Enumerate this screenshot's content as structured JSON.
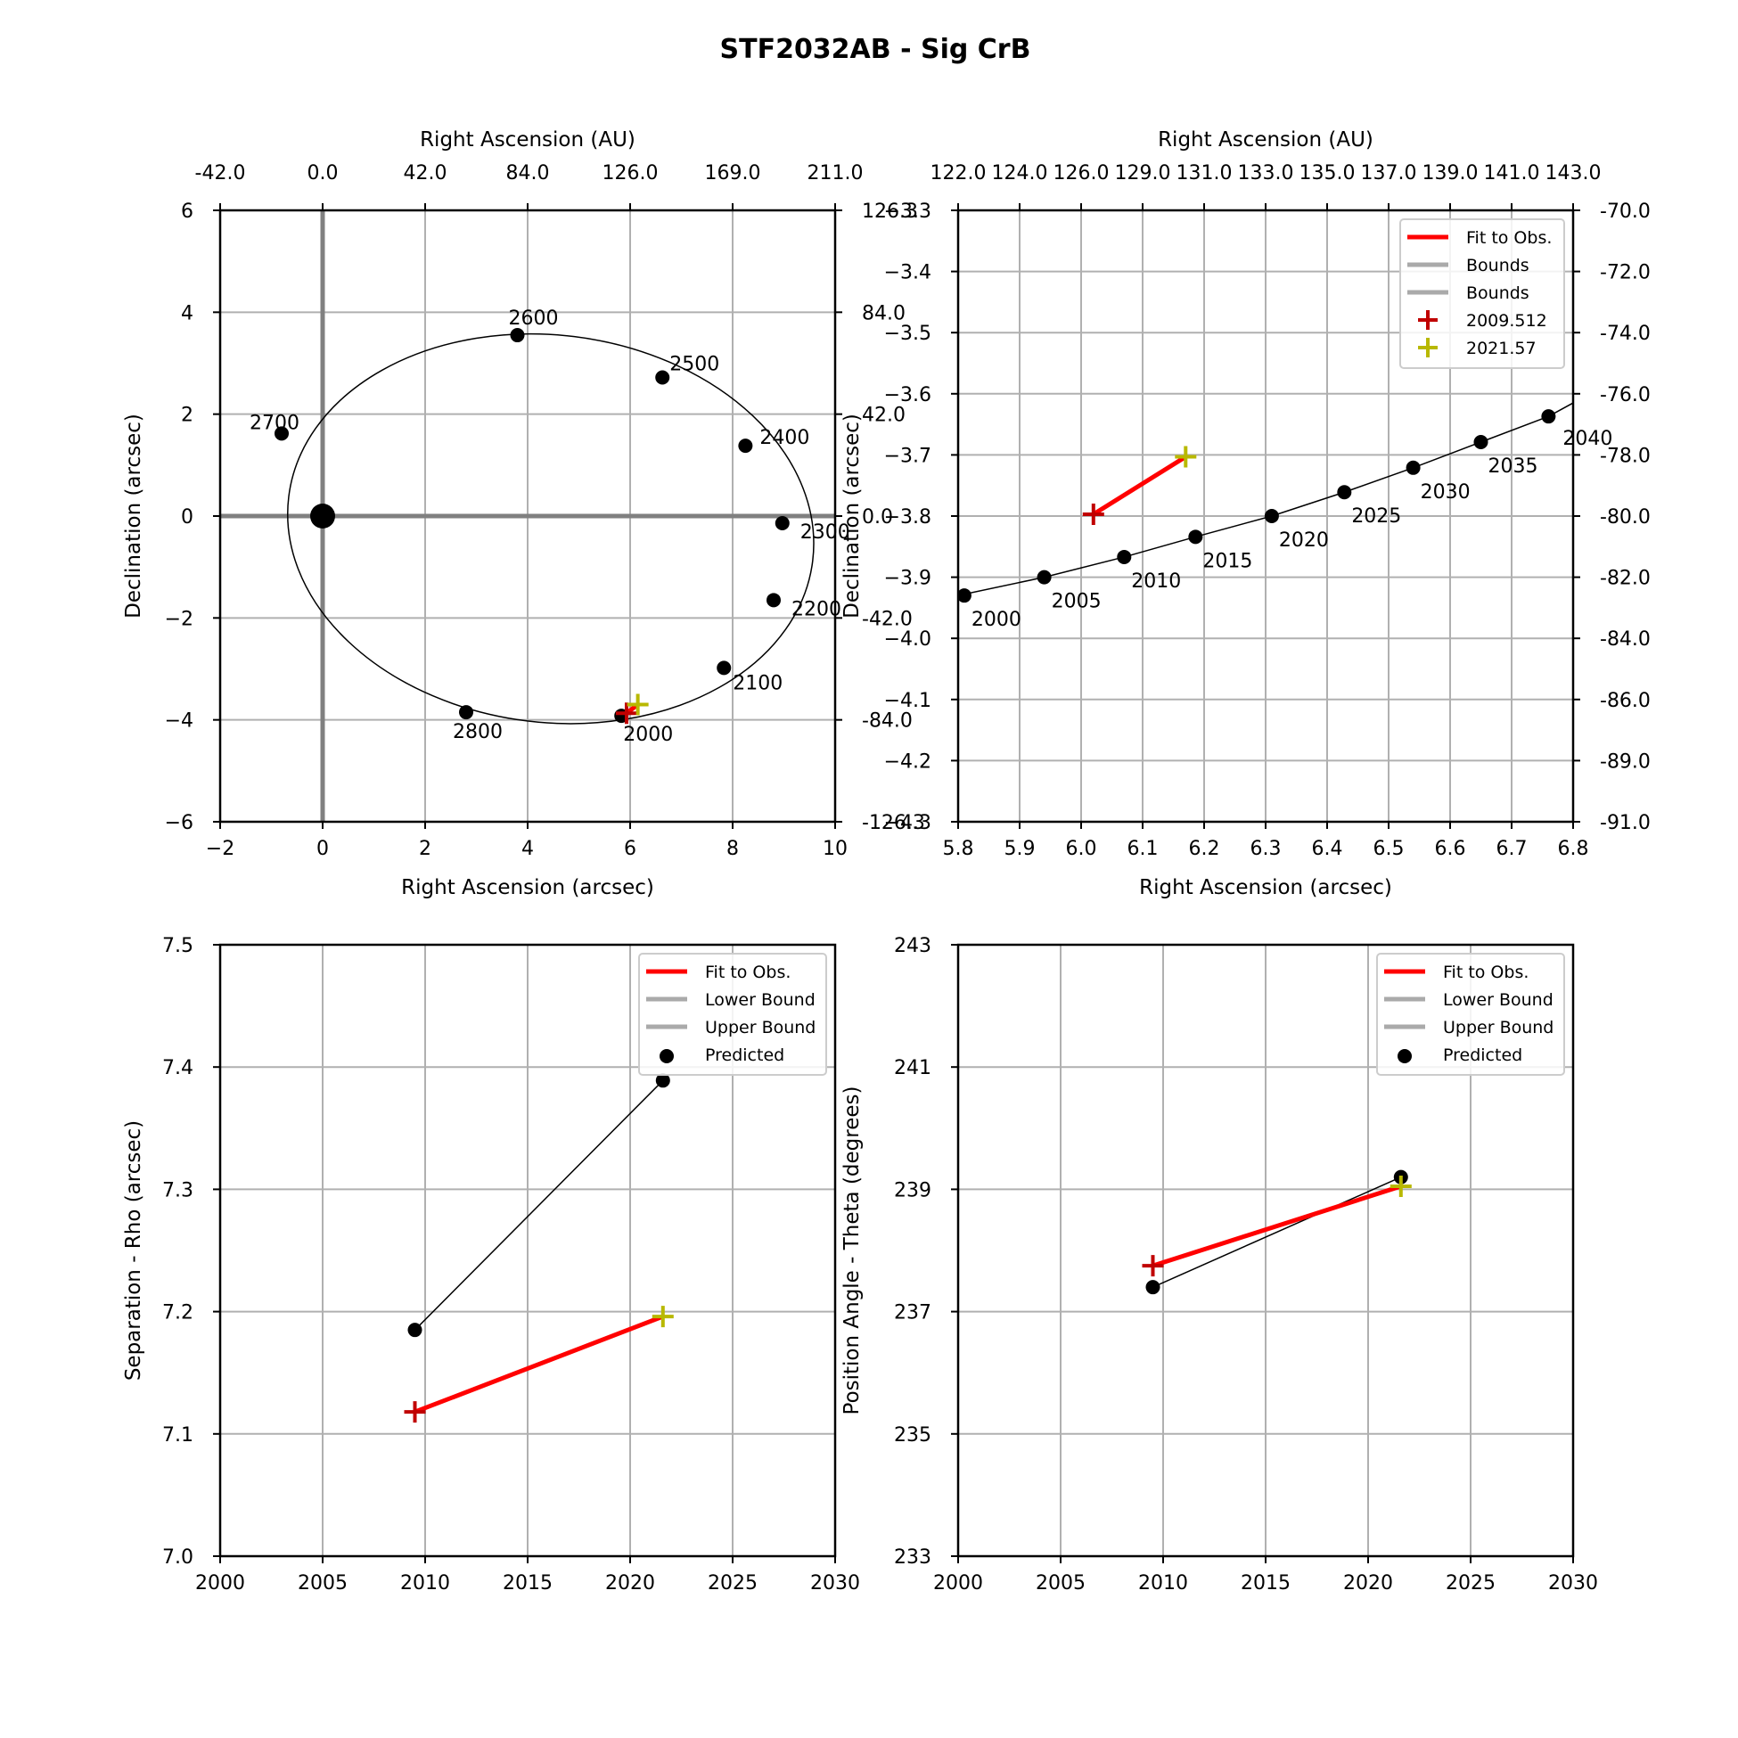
{
  "chart_data": {
    "suptitle": "STF2032AB - Sig CrB",
    "panels": [
      {
        "id": "orbit",
        "type": "scatter",
        "xlabel": "Right Ascension (arcsec)",
        "ylabel": "Declination (arcsec)",
        "top_xlabel": "Right Ascension (AU)",
        "right_ylabel": "",
        "xlim": [
          -2,
          10
        ],
        "ylim": [
          -6,
          6
        ],
        "x_ticks": [
          -2,
          0,
          2,
          4,
          6,
          8,
          10
        ],
        "x_tick_labels": [
          "−2",
          "0",
          "2",
          "4",
          "6",
          "8",
          "10"
        ],
        "y_ticks": [
          -6,
          -4,
          -2,
          0,
          2,
          4,
          6
        ],
        "y_tick_labels": [
          "−6",
          "−4",
          "−2",
          "0",
          "2",
          "4",
          "6"
        ],
        "top_ticks": [
          -2,
          0,
          2,
          4,
          6,
          8,
          10
        ],
        "top_tick_labels": [
          "-42.0",
          "0.0",
          "42.0",
          "84.0",
          "126.0",
          "169.0",
          "211.0"
        ],
        "right_ticks": [
          -6,
          -4,
          -2,
          0,
          2,
          4,
          6
        ],
        "right_tick_labels": [
          "-126.3",
          "-84.0",
          "-42.0",
          "0.0",
          "42.0",
          "84.0",
          "126.3"
        ],
        "grid": true,
        "primary_star": [
          0,
          0
        ],
        "ellipse": {
          "cx": 4.45,
          "cy": -0.25,
          "rx": 5.15,
          "ry": 3.8,
          "angle_deg": -7
        },
        "points": [
          {
            "x": 5.83,
            "y": -3.92,
            "label": "2000"
          },
          {
            "x": 7.83,
            "y": -2.98,
            "label": "2100"
          },
          {
            "x": 8.8,
            "y": -1.65,
            "label": "2200"
          },
          {
            "x": 8.97,
            "y": -0.14,
            "label": "2300"
          },
          {
            "x": 8.25,
            "y": 1.38,
            "label": "2400"
          },
          {
            "x": 6.63,
            "y": 2.72,
            "label": "2500"
          },
          {
            "x": 3.8,
            "y": 3.55,
            "label": "2600"
          },
          {
            "x": -0.8,
            "y": 1.62,
            "label": "2700"
          },
          {
            "x": 2.8,
            "y": -3.85,
            "label": "2800"
          }
        ],
        "obs_line": [
          [
            5.93,
            -3.87
          ],
          [
            6.15,
            -3.7
          ]
        ],
        "obs_markers": [
          {
            "x": 5.93,
            "y": -3.87,
            "color": "#c00000"
          },
          {
            "x": 6.15,
            "y": -3.7,
            "color": "#b8b800"
          }
        ]
      },
      {
        "id": "orbit-zoom",
        "type": "scatter",
        "xlabel": "Right Ascension (arcsec)",
        "ylabel": "Declination (arcsec)",
        "top_xlabel": "Right Ascension (AU)",
        "xlim": [
          5.8,
          6.8
        ],
        "ylim": [
          -4.3,
          -3.3
        ],
        "x_ticks": [
          5.8,
          5.9,
          6.0,
          6.1,
          6.2,
          6.3,
          6.4,
          6.5,
          6.6,
          6.7,
          6.8
        ],
        "x_tick_labels": [
          "5.8",
          "5.9",
          "6.0",
          "6.1",
          "6.2",
          "6.3",
          "6.4",
          "6.5",
          "6.6",
          "6.7",
          "6.8"
        ],
        "y_ticks": [
          -4.3,
          -4.2,
          -4.1,
          -4.0,
          -3.9,
          -3.8,
          -3.7,
          -3.6,
          -3.5,
          -3.4,
          -3.3
        ],
        "y_tick_labels": [
          "−4.3",
          "−4.2",
          "−4.1",
          "−4.0",
          "−3.9",
          "−3.8",
          "−3.7",
          "−3.6",
          "−3.5",
          "−3.4",
          "−3.3"
        ],
        "top_ticks": [
          5.8,
          5.9,
          6.0,
          6.1,
          6.2,
          6.3,
          6.4,
          6.5,
          6.6,
          6.7,
          6.8
        ],
        "top_tick_labels": [
          "122.0",
          "124.0",
          "126.0",
          "129.0",
          "131.0",
          "133.0",
          "135.0",
          "137.0",
          "139.0",
          "141.0",
          "143.0"
        ],
        "right_ticks": [
          -4.3,
          -4.2,
          -4.1,
          -4.0,
          -3.9,
          -3.8,
          -3.7,
          -3.6,
          -3.5,
          -3.4,
          -3.3
        ],
        "right_tick_labels": [
          "-91.0",
          "-89.0",
          "-86.0",
          "-84.0",
          "-82.0",
          "-80.0",
          "-78.0",
          "-76.0",
          "-74.0",
          "-72.0",
          "-70.0"
        ],
        "grid": true,
        "curve": [
          [
            5.8,
            -3.93
          ],
          [
            5.94,
            -3.9
          ],
          [
            6.07,
            -3.867
          ],
          [
            6.186,
            -3.834
          ],
          [
            6.31,
            -3.8
          ],
          [
            6.428,
            -3.761
          ],
          [
            6.54,
            -3.721
          ],
          [
            6.65,
            -3.679
          ],
          [
            6.76,
            -3.637
          ],
          [
            6.8,
            -3.615
          ]
        ],
        "points": [
          {
            "x": 5.81,
            "y": -3.93,
            "label": "2000"
          },
          {
            "x": 5.94,
            "y": -3.9,
            "label": "2005"
          },
          {
            "x": 6.07,
            "y": -3.867,
            "label": "2010"
          },
          {
            "x": 6.186,
            "y": -3.834,
            "label": "2015"
          },
          {
            "x": 6.31,
            "y": -3.8,
            "label": "2020"
          },
          {
            "x": 6.428,
            "y": -3.761,
            "label": "2025"
          },
          {
            "x": 6.54,
            "y": -3.721,
            "label": "2030"
          },
          {
            "x": 6.65,
            "y": -3.679,
            "label": "2035"
          },
          {
            "x": 6.76,
            "y": -3.637,
            "label": "2040"
          }
        ],
        "obs_line": [
          [
            6.02,
            -3.797
          ],
          [
            6.17,
            -3.703
          ]
        ],
        "obs_markers": [
          {
            "x": 6.02,
            "y": -3.797,
            "color": "#c00000"
          },
          {
            "x": 6.17,
            "y": -3.703,
            "color": "#b8b800"
          }
        ],
        "legend": {
          "position": "upper right",
          "entries": [
            {
              "type": "line",
              "color": "#ff0000",
              "label": "Fit to Obs."
            },
            {
              "type": "line",
              "color": "#aaaaaa",
              "label": "Bounds"
            },
            {
              "type": "line",
              "color": "#aaaaaa",
              "label": "Bounds"
            },
            {
              "type": "plus",
              "color": "#c00000",
              "label": "2009.512"
            },
            {
              "type": "plus",
              "color": "#b8b800",
              "label": "2021.57"
            }
          ]
        }
      },
      {
        "id": "separation",
        "type": "line",
        "xlabel": "",
        "ylabel": "Separation - Rho (arcsec)",
        "xlim": [
          2000,
          2030
        ],
        "ylim": [
          7.0,
          7.5
        ],
        "x_ticks": [
          2000,
          2005,
          2010,
          2015,
          2020,
          2025,
          2030
        ],
        "x_tick_labels": [
          "2000",
          "2005",
          "2010",
          "2015",
          "2020",
          "2025",
          "2030"
        ],
        "y_ticks": [
          7.0,
          7.1,
          7.2,
          7.3,
          7.4,
          7.5
        ],
        "y_tick_labels": [
          "7.0",
          "7.1",
          "7.2",
          "7.3",
          "7.4",
          "7.5"
        ],
        "grid": true,
        "predicted": [
          [
            2009.5,
            7.185
          ],
          [
            2021.6,
            7.389
          ]
        ],
        "fit": [
          [
            2009.5,
            7.118
          ],
          [
            2021.6,
            7.196
          ]
        ],
        "obs_markers": [
          {
            "x": 2009.5,
            "y": 7.118,
            "color": "#c00000"
          },
          {
            "x": 2021.6,
            "y": 7.196,
            "color": "#b8b800"
          }
        ],
        "legend": {
          "position": "upper right",
          "entries": [
            {
              "type": "line",
              "color": "#ff0000",
              "label": "Fit to Obs."
            },
            {
              "type": "line",
              "color": "#aaaaaa",
              "label": "Lower Bound"
            },
            {
              "type": "line",
              "color": "#aaaaaa",
              "label": "Upper Bound"
            },
            {
              "type": "dot",
              "color": "#000000",
              "label": "Predicted"
            }
          ]
        }
      },
      {
        "id": "position-angle",
        "type": "line",
        "xlabel": "",
        "ylabel": "Position Angle - Theta (degrees)",
        "xlim": [
          2000,
          2030
        ],
        "ylim": [
          233,
          243
        ],
        "x_ticks": [
          2000,
          2005,
          2010,
          2015,
          2020,
          2025,
          2030
        ],
        "x_tick_labels": [
          "2000",
          "2005",
          "2010",
          "2015",
          "2020",
          "2025",
          "2030"
        ],
        "y_ticks": [
          233,
          235,
          237,
          239,
          241,
          243
        ],
        "y_tick_labels": [
          "233",
          "235",
          "237",
          "239",
          "241",
          "243"
        ],
        "grid": true,
        "predicted": [
          [
            2009.5,
            237.4
          ],
          [
            2021.6,
            239.2
          ]
        ],
        "fit": [
          [
            2009.5,
            237.75
          ],
          [
            2021.6,
            239.05
          ]
        ],
        "obs_markers": [
          {
            "x": 2009.5,
            "y": 237.75,
            "color": "#c00000"
          },
          {
            "x": 2021.6,
            "y": 239.05,
            "color": "#b8b800"
          }
        ],
        "legend": {
          "position": "upper right",
          "entries": [
            {
              "type": "line",
              "color": "#ff0000",
              "label": "Fit to Obs."
            },
            {
              "type": "line",
              "color": "#aaaaaa",
              "label": "Lower Bound"
            },
            {
              "type": "line",
              "color": "#aaaaaa",
              "label": "Upper Bound"
            },
            {
              "type": "dot",
              "color": "#000000",
              "label": "Predicted"
            }
          ]
        }
      }
    ]
  }
}
